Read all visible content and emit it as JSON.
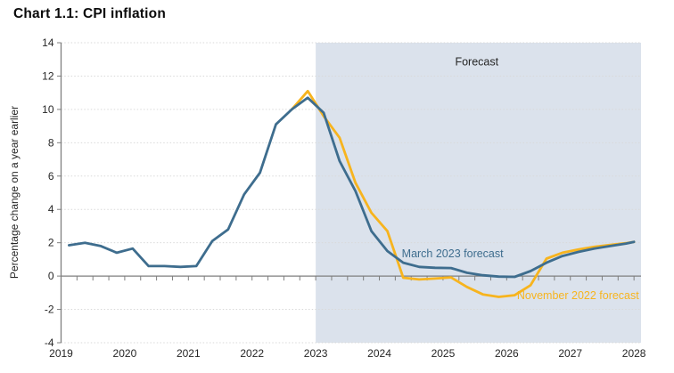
{
  "chart_data": {
    "type": "line",
    "title": "Chart 1.1: CPI inflation",
    "ylabel": "Percentage change on a year earlier",
    "xlim": [
      2019,
      2028.11
    ],
    "ylim": [
      -4,
      14
    ],
    "yticks": [
      14,
      12,
      10,
      8,
      6,
      4,
      2,
      0,
      -2,
      -4
    ],
    "xticks": [
      2019,
      2020,
      2021,
      2022,
      2023,
      2024,
      2025,
      2026,
      2027,
      2028
    ],
    "quarter_tick_step": 0.25,
    "grid": true,
    "colors": {
      "shade": "#dbe2ec",
      "grid": "#d9d9d9",
      "axis": "#7f7f7f",
      "text": "#262626"
    },
    "forecast_region": {
      "start": 2023,
      "label": "Forecast",
      "label_x": 2025.53,
      "label_y": 12.85
    },
    "series": [
      {
        "id": "november-2022-forecast",
        "name": "November 2022 forecast",
        "color": "#f7b41e",
        "label": {
          "text": "November 2022 forecast",
          "x": 2027.12,
          "y": -1.18
        },
        "x": [
          2022.625,
          2022.875,
          2023.125,
          2023.375,
          2023.625,
          2023.875,
          2024.125,
          2024.375,
          2024.625,
          2024.875,
          2025.125,
          2025.375,
          2025.625,
          2025.875,
          2026.125,
          2026.375,
          2026.625,
          2026.875,
          2027.125,
          2027.375,
          2027.625,
          2027.875,
          2028.0
        ],
        "y": [
          10.0,
          11.1,
          9.6,
          8.3,
          5.6,
          3.8,
          2.7,
          -0.1,
          -0.2,
          -0.15,
          -0.08,
          -0.65,
          -1.1,
          -1.25,
          -1.15,
          -0.55,
          1.05,
          1.4,
          1.6,
          1.75,
          1.87,
          1.97,
          2.05
        ]
      },
      {
        "id": "march-2023-forecast",
        "name": "March 2023 forecast",
        "color": "#3e6d8e",
        "label": {
          "text": "March 2023 forecast",
          "x": 2025.15,
          "y": 1.35
        },
        "x": [
          2019.125,
          2019.375,
          2019.625,
          2019.875,
          2020.125,
          2020.375,
          2020.625,
          2020.875,
          2021.125,
          2021.375,
          2021.625,
          2021.875,
          2022.125,
          2022.375,
          2022.625,
          2022.875,
          2023.125,
          2023.375,
          2023.625,
          2023.875,
          2024.125,
          2024.375,
          2024.625,
          2024.875,
          2025.125,
          2025.375,
          2025.625,
          2025.875,
          2026.125,
          2026.375,
          2026.625,
          2026.875,
          2027.125,
          2027.375,
          2027.625,
          2027.875,
          2028.0
        ],
        "y": [
          1.85,
          2.0,
          1.8,
          1.4,
          1.65,
          0.6,
          0.6,
          0.55,
          0.6,
          2.1,
          2.8,
          4.9,
          6.2,
          9.1,
          10.0,
          10.7,
          9.8,
          6.9,
          5.1,
          2.7,
          1.5,
          0.8,
          0.55,
          0.5,
          0.48,
          0.2,
          0.05,
          -0.03,
          -0.05,
          0.3,
          0.8,
          1.2,
          1.45,
          1.65,
          1.8,
          1.95,
          2.05
        ]
      }
    ]
  }
}
